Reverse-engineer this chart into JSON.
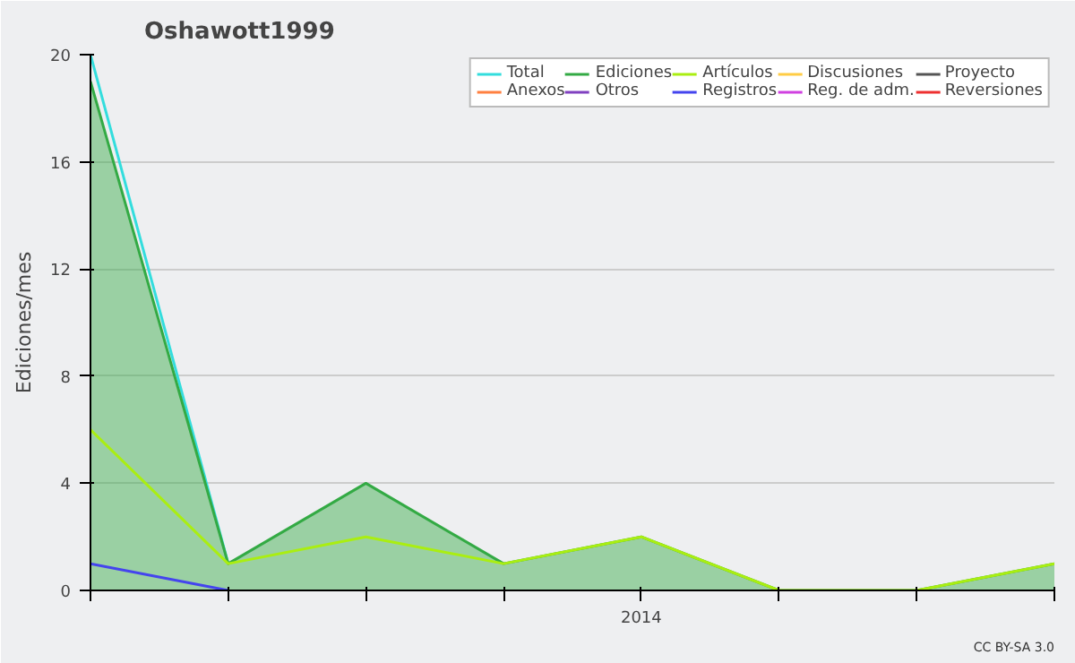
{
  "chart_data": {
    "type": "line",
    "title": "Oshawott1999",
    "ylabel": "Ediciones/mes",
    "categories": [
      null,
      null,
      null,
      null,
      "2014",
      null,
      null,
      null
    ],
    "ylim": [
      0,
      20
    ],
    "yticks": [
      0,
      4,
      8,
      12,
      16,
      20
    ],
    "grid": "y",
    "legend": "top right",
    "annotations": [
      "CC BY-SA 3.0"
    ],
    "series": [
      {
        "name": "Total",
        "color": "#33dddd",
        "values": [
          20,
          1,
          null,
          null,
          null,
          null,
          null,
          null
        ]
      },
      {
        "name": "Anexos",
        "color": "#ff8040",
        "values": [
          null,
          null,
          null,
          null,
          null,
          null,
          null,
          null
        ]
      },
      {
        "name": "Ediciones",
        "color": "#33aa44",
        "type": "area",
        "values": [
          19,
          1,
          4,
          1,
          2,
          0,
          0,
          1
        ]
      },
      {
        "name": "Otros",
        "color": "#8040c0",
        "values": [
          null,
          null,
          null,
          null,
          null,
          null,
          null,
          null
        ]
      },
      {
        "name": "Artículos",
        "color": "#aaee11",
        "values": [
          6,
          1,
          2,
          1,
          2,
          0,
          0,
          1
        ]
      },
      {
        "name": "Registros",
        "color": "#4444ee",
        "values": [
          1,
          0,
          null,
          null,
          null,
          null,
          null,
          null
        ]
      },
      {
        "name": "Discusiones",
        "color": "#ffcc44",
        "values": [
          null,
          null,
          null,
          null,
          null,
          null,
          null,
          null
        ]
      },
      {
        "name": "Reg. de adm.",
        "color": "#d040e0",
        "values": [
          null,
          null,
          null,
          null,
          null,
          null,
          null,
          null
        ]
      },
      {
        "name": "Proyecto",
        "color": "#555555",
        "values": [
          null,
          null,
          null,
          null,
          null,
          null,
          null,
          null
        ]
      },
      {
        "name": "Reversiones",
        "color": "#ee3030",
        "values": [
          null,
          null,
          null,
          null,
          null,
          null,
          null,
          null
        ]
      }
    ]
  }
}
